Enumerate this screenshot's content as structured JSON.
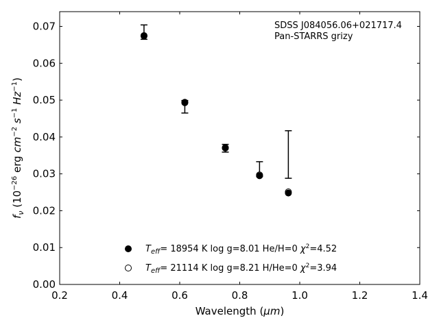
{
  "chart_data": {
    "type": "scatter",
    "title": "",
    "xlabel": "Wavelength (μm)",
    "ylabel": "f_ν (10^-26 erg cm^-2 s^-1 Hz^-1)",
    "xlim": [
      0.2,
      1.4
    ],
    "ylim": [
      0.0,
      0.074
    ],
    "xticks": [
      "0.2",
      "0.4",
      "0.6",
      "0.8",
      "1.0",
      "1.2",
      "1.4"
    ],
    "yticks": [
      "0.00",
      "0.01",
      "0.02",
      "0.03",
      "0.04",
      "0.05",
      "0.06",
      "0.07"
    ],
    "grid": false,
    "legend_position": "bottom-center",
    "annotations": [
      "SDSS J084056.06+021717.4",
      "Pan-STARRS grizy"
    ],
    "observed": {
      "x": [
        0.481,
        0.617,
        0.752,
        0.866,
        0.962
      ],
      "y_low": [
        0.0665,
        0.0465,
        0.0359,
        0.0293,
        0.0288
      ],
      "y_high": [
        0.0704,
        0.0499,
        0.038,
        0.0333,
        0.0417
      ]
    },
    "series": [
      {
        "name": "T_eff= 18954 K  log g=8.01  He/H=0  χ²=4.52",
        "marker": "filled-circle",
        "x": [
          0.481,
          0.617,
          0.752,
          0.866,
          0.962
        ],
        "y": [
          0.0674,
          0.0493,
          0.037,
          0.0295,
          0.0248
        ]
      },
      {
        "name": "T_eff= 21114 K  log g=8.21  H/He=0  χ²=3.94",
        "marker": "open-circle",
        "x": [
          0.481,
          0.617,
          0.752,
          0.866,
          0.962
        ],
        "y": [
          0.0675,
          0.0494,
          0.0371,
          0.0297,
          0.0251
        ]
      }
    ]
  }
}
